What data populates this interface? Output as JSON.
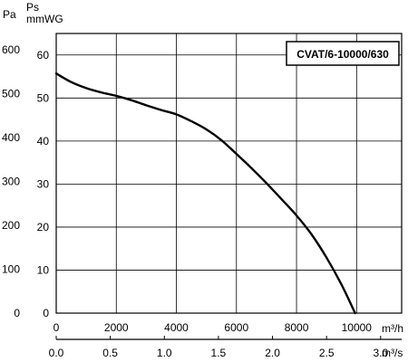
{
  "chart_data": {
    "type": "line",
    "legend_label": "CVAT/6-10000/630",
    "legend_position": "top-right",
    "grid": true,
    "y_left_unit": "Pa",
    "y_right_unit_top": "Ps",
    "y_right_unit_bottom": "mmWG",
    "x_top_unit": "m³/h",
    "x_bottom_unit": "m³/s",
    "y_pa_ticks": [
      "600",
      "500",
      "400",
      "300",
      "200",
      "100",
      "0"
    ],
    "y_mmwg_ticks": [
      "60",
      "50",
      "40",
      "30",
      "20",
      "10",
      "0"
    ],
    "x_m3h_ticks": [
      "0",
      "2000",
      "4000",
      "6000",
      "8000",
      "10000"
    ],
    "x_m3s_ticks": [
      "0.0",
      "0.5",
      "1.0",
      "1.5",
      "2.0",
      "2.5",
      "3.0"
    ],
    "x_m3h_range": [
      0,
      11500
    ],
    "y_mmwg_range": [
      0,
      65
    ],
    "series": [
      {
        "x": [
          0,
          500,
          1000,
          1500,
          2000,
          2500,
          3000,
          3500,
          4000,
          4500,
          5000,
          5500,
          6000,
          6500,
          7000,
          7500,
          8000,
          8500,
          9000,
          9500,
          9950
        ],
        "y": [
          55.7,
          53.7,
          52.3,
          51.3,
          50.5,
          49.5,
          48.3,
          47.2,
          46.2,
          44.6,
          42.7,
          40.2,
          37.0,
          33.7,
          30.2,
          26.5,
          22.7,
          18.3,
          12.9,
          6.6,
          0
        ]
      }
    ]
  }
}
